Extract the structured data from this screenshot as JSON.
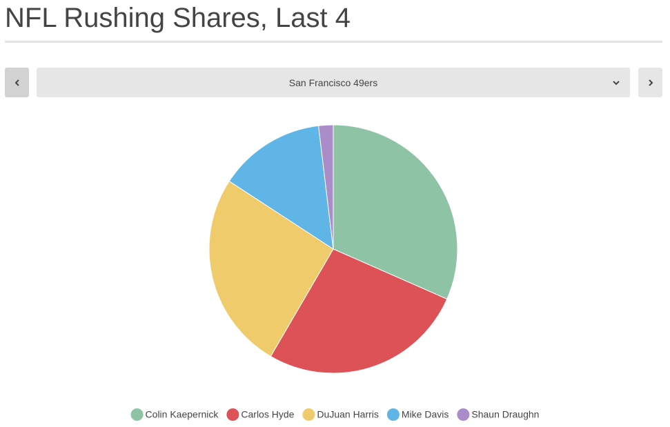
{
  "header": {
    "title": "NFL Rushing Shares, Last 4"
  },
  "selector": {
    "label": "San Francisco 49ers"
  },
  "chart_data": {
    "type": "pie",
    "categories": [
      "Colin Kaepernick",
      "Carlos Hyde",
      "DuJuan Harris",
      "Mike Davis",
      "Shaun Draughn"
    ],
    "values": [
      31.6,
      26.8,
      25.8,
      13.9,
      1.9
    ],
    "colors": [
      "#8fc3a6",
      "#dc5256",
      "#efcb6b",
      "#5fb5e5",
      "#a98cc8"
    ]
  }
}
